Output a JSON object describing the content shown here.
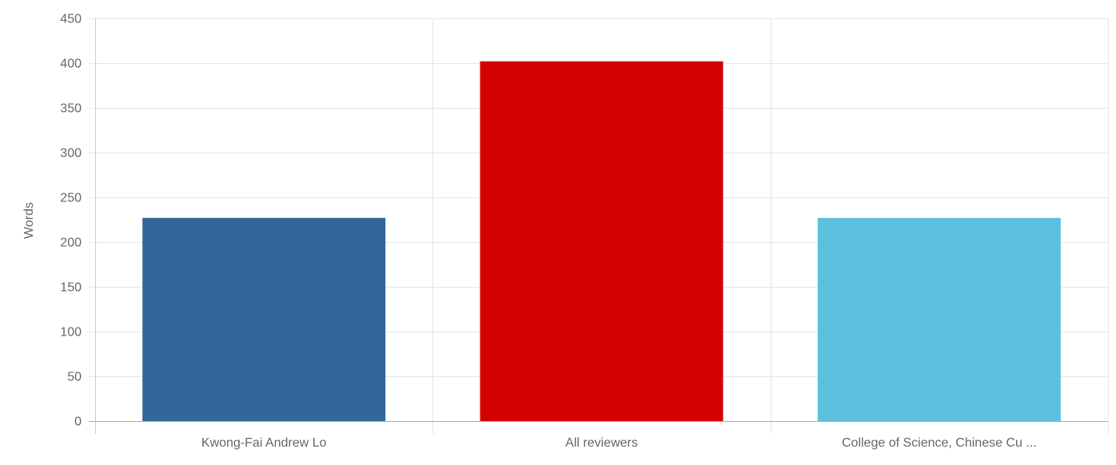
{
  "chart_data": {
    "type": "bar",
    "title": "",
    "xlabel": "",
    "ylabel": "Words",
    "ylim": [
      0,
      450
    ],
    "ytick_step": 50,
    "yticks": [
      "0",
      "50",
      "100",
      "150",
      "200",
      "250",
      "300",
      "350",
      "400",
      "450"
    ],
    "grid": true,
    "legend": "none",
    "categories": [
      "Kwong-Fai Andrew Lo",
      "All reviewers",
      "College of Science, Chinese Cu ..."
    ],
    "values": [
      227,
      402,
      227
    ],
    "colors": [
      "#336699",
      "#d40000",
      "#5bc0de"
    ]
  }
}
